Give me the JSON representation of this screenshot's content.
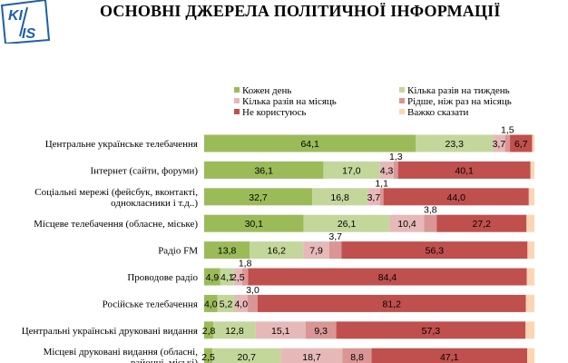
{
  "title": "ОСНОВНІ ДЖЕРЕЛА ПОЛІТИЧНОЇ ІНФОРМАЦІЇ",
  "logo": {
    "text": "KIIS"
  },
  "colors": [
    "#9bbb59",
    "#c4d79b",
    "#e6b9b8",
    "#d99694",
    "#c0504d",
    "#fcd5b4"
  ],
  "chart_data": {
    "type": "bar",
    "orientation": "horizontal",
    "stacked": true,
    "xlim": [
      0,
      100
    ],
    "grid": false,
    "legend_position": "top",
    "categories": [
      "Центральне українське телебачення",
      "Інтернет (сайти, форуми)",
      "Соціальні мережі (фейсбук, вконтакті, однокласники і т.д..)",
      "Місцеве телебачення (обласне, міське)",
      "Радіо FM",
      "Проводове радіо",
      "Російське телебачення",
      "Центральні українські друковані видання",
      "Місцеві друковані видання (обласні, районні, міські)"
    ],
    "category_lines": [
      [
        "Центральне українське телебачення"
      ],
      [
        "Інтернет (сайти, форуми)"
      ],
      [
        "Соціальні мережі (фейсбук, вконтакті,",
        "однокласники і т.д..)"
      ],
      [
        "Місцеве телебачення (обласне, міське)"
      ],
      [
        "Радіо FM"
      ],
      [
        "Проводове радіо"
      ],
      [
        "Російське телебачення"
      ],
      [
        "Центральні українські друковані видання"
      ],
      [
        "Місцеві друковані видання (обласні,",
        "районні, міські)"
      ]
    ],
    "series": [
      {
        "name": "Кожен день",
        "values": [
          64.1,
          36.1,
          32.7,
          30.1,
          13.8,
          4.9,
          4.0,
          2.8,
          2.5
        ]
      },
      {
        "name": "Кілька разів на тиждень",
        "values": [
          23.3,
          17.0,
          16.8,
          26.1,
          16.2,
          4.1,
          5.2,
          12.8,
          20.7
        ]
      },
      {
        "name": "Кілька разів на місяць",
        "values": [
          3.7,
          4.3,
          3.7,
          10.4,
          7.9,
          2.5,
          4.0,
          15.1,
          18.7
        ]
      },
      {
        "name": "Рідше, ніж раз на місяць",
        "values": [
          1.5,
          1.3,
          1.1,
          3.8,
          3.7,
          1.8,
          3.0,
          9.3,
          8.8
        ]
      },
      {
        "name": "Не користуюсь",
        "values": [
          6.7,
          40.1,
          44.0,
          27.2,
          56.3,
          84.4,
          81.2,
          57.3,
          47.1
        ]
      },
      {
        "name": "Важко сказати",
        "values": [
          0.7,
          1.2,
          1.7,
          2.4,
          2.1,
          2.3,
          2.6,
          2.7,
          2.2
        ]
      }
    ],
    "labels": [
      [
        "64,1",
        "23,3",
        "3,7",
        "1,5",
        "6,7",
        ""
      ],
      [
        "36,1",
        "17,0",
        "4,3",
        "1,3",
        "40,1",
        ""
      ],
      [
        "32,7",
        "16,8",
        "3,7",
        "1,1",
        "44,0",
        ""
      ],
      [
        "30,1",
        "26,1",
        "10,4",
        "3,8",
        "27,2",
        ""
      ],
      [
        "13,8",
        "16,2",
        "7,9",
        "3,7",
        "56,3",
        ""
      ],
      [
        "4,9",
        "4,1",
        "2,5",
        "1,8",
        "84,4",
        ""
      ],
      [
        "4,0",
        "5,2",
        "4,0",
        "3,0",
        "81,2",
        ""
      ],
      [
        "2,8",
        "12,8",
        "15,1",
        "9,3",
        "57,3",
        ""
      ],
      [
        "2,5",
        "20,7",
        "18,7",
        "8,8",
        "47,1",
        ""
      ]
    ]
  }
}
